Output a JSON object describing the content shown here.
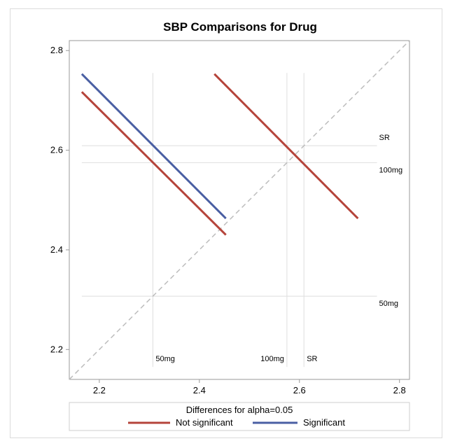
{
  "chart_data": {
    "type": "diffogram",
    "title": "SBP Comparisons for Drug",
    "xlim": [
      2.14,
      2.82
    ],
    "ylim": [
      2.14,
      2.82
    ],
    "x_ticks": [
      "2.2",
      "2.4",
      "2.6",
      "2.8"
    ],
    "y_ticks": [
      "2.2",
      "2.4",
      "2.6",
      "2.8"
    ],
    "levels": [
      {
        "name": "50mg",
        "value": 2.307
      },
      {
        "name": "100mg",
        "value": 2.575
      },
      {
        "name": "SR",
        "value": 2.609
      }
    ],
    "series": [
      {
        "name": "Not significant",
        "color": "#b5443b",
        "segments": [
          {
            "x": [
              2.165,
              2.453
            ],
            "y": [
              2.717,
              2.43
            ]
          },
          {
            "x": [
              2.43,
              2.717
            ],
            "y": [
              2.753,
              2.463
            ]
          }
        ]
      },
      {
        "name": "Significant",
        "color": "#4a5fa3",
        "segments": [
          {
            "x": [
              2.165,
              2.453
            ],
            "y": [
              2.753,
              2.463
            ]
          }
        ]
      }
    ],
    "diagonal": {
      "color": "#bdbdbd",
      "style": "dashed"
    },
    "legend": {
      "title": "Differences for alpha=0.05",
      "placement": "bottom"
    },
    "grid": false
  }
}
